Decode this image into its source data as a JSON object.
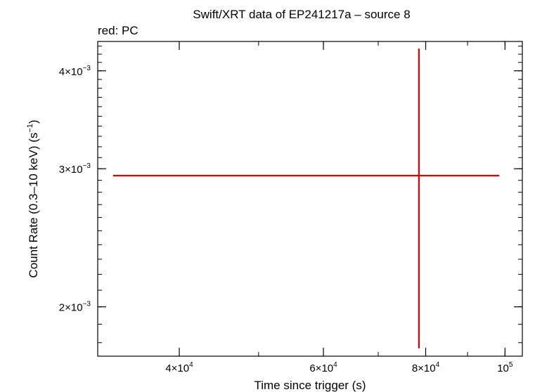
{
  "chart_data": {
    "type": "scatter",
    "title": "Swift/XRT data of EP241217a – source 8",
    "subtitle": "red: PC",
    "xlabel": "Time since trigger (s)",
    "ylabel_main": "Count Rate (0.3–10 keV) (s",
    "ylabel_sup": "−1",
    "ylabel_tail": ")",
    "x_scale": "log",
    "y_scale": "log",
    "xlim": [
      31800,
      105000
    ],
    "ylim": [
      0.00173,
      0.00436
    ],
    "x_ticks": [
      {
        "value": 40000,
        "mant": "4×10",
        "exp": "4"
      },
      {
        "value": 60000,
        "mant": "6×10",
        "exp": "4"
      },
      {
        "value": 80000,
        "mant": "8×10",
        "exp": "4"
      },
      {
        "value": 100000,
        "mant": "10",
        "exp": "5"
      }
    ],
    "y_ticks": [
      {
        "value": 0.002,
        "mant": "2×10",
        "exp": "−3"
      },
      {
        "value": 0.003,
        "mant": "3×10",
        "exp": "−3"
      },
      {
        "value": 0.004,
        "mant": "4×10",
        "exp": "−3"
      }
    ],
    "series": [
      {
        "color": "#e00000",
        "points": [
          {
            "x": 78500,
            "x_lo": 33200,
            "x_hi": 98400,
            "y": 0.00294,
            "y_lo": 0.00177,
            "y_hi": 0.00427
          }
        ]
      }
    ],
    "grid": false
  }
}
